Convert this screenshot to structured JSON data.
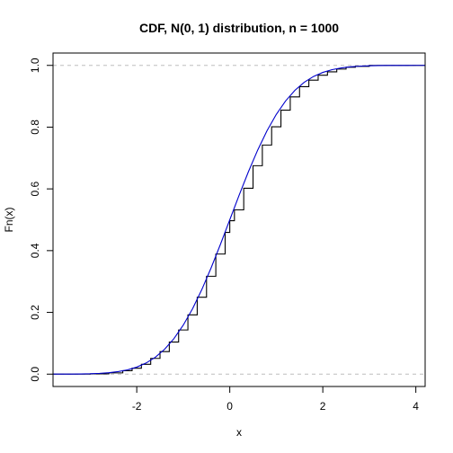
{
  "chart_data": {
    "type": "line",
    "title": "CDF, N(0, 1) distribution, n = 1000",
    "xlabel": "x",
    "ylabel": "Fn(x)",
    "xlim": [
      -3.8,
      4.2
    ],
    "ylim": [
      -0.04,
      1.04
    ],
    "x_ticks": [
      -2,
      0,
      2,
      4
    ],
    "y_ticks": [
      0.0,
      0.2,
      0.4,
      0.6,
      0.8,
      1.0
    ],
    "x_tick_labels": [
      "-2",
      "0",
      "2",
      "4"
    ],
    "y_tick_labels": [
      "0.0",
      "0.2",
      "0.4",
      "0.6",
      "0.8",
      "1.0"
    ],
    "reference_lines": [
      {
        "y": 0,
        "style": "dashed",
        "color": "#bebebe"
      },
      {
        "y": 1,
        "style": "dashed",
        "color": "#bebebe"
      }
    ],
    "series": [
      {
        "type": "step",
        "color": "#000000",
        "x": [
          -3.8,
          -3.0,
          -2.6,
          -2.3,
          -2.1,
          -1.9,
          -1.7,
          -1.5,
          -1.3,
          -1.1,
          -0.9,
          -0.7,
          -0.5,
          -0.3,
          -0.1,
          0.0,
          0.1,
          0.3,
          0.5,
          0.7,
          0.9,
          1.1,
          1.3,
          1.5,
          1.7,
          1.9,
          2.1,
          2.3,
          2.5,
          2.7,
          3.0,
          4.2
        ],
        "y": [
          0.0,
          0.001,
          0.004,
          0.011,
          0.019,
          0.032,
          0.051,
          0.073,
          0.104,
          0.143,
          0.192,
          0.249,
          0.317,
          0.389,
          0.459,
          0.497,
          0.532,
          0.602,
          0.675,
          0.742,
          0.801,
          0.855,
          0.898,
          0.931,
          0.952,
          0.968,
          0.979,
          0.988,
          0.994,
          0.997,
          1.0,
          1.0
        ]
      },
      {
        "type": "line",
        "color": "#0000cc",
        "x": [
          -3.8,
          -3.6,
          -3.4,
          -3.2,
          -3.0,
          -2.8,
          -2.6,
          -2.4,
          -2.2,
          -2.0,
          -1.8,
          -1.6,
          -1.4,
          -1.2,
          -1.0,
          -0.8,
          -0.6,
          -0.4,
          -0.2,
          0.0,
          0.2,
          0.4,
          0.6,
          0.8,
          1.0,
          1.2,
          1.4,
          1.6,
          1.8,
          2.0,
          2.2,
          2.4,
          2.6,
          2.8,
          3.0,
          3.2,
          3.4,
          3.6,
          3.8,
          4.0,
          4.2
        ],
        "y": [
          0.0001,
          0.0002,
          0.0003,
          0.0007,
          0.0013,
          0.0026,
          0.0047,
          0.0082,
          0.0139,
          0.0228,
          0.0359,
          0.0548,
          0.0808,
          0.1151,
          0.1587,
          0.2119,
          0.2743,
          0.3446,
          0.4207,
          0.5,
          0.5793,
          0.6554,
          0.7257,
          0.7881,
          0.8413,
          0.8849,
          0.9192,
          0.9452,
          0.9641,
          0.9772,
          0.9861,
          0.9918,
          0.9953,
          0.9974,
          0.9987,
          0.9993,
          0.9997,
          0.9998,
          0.9999,
          1.0,
          1.0
        ]
      }
    ]
  }
}
